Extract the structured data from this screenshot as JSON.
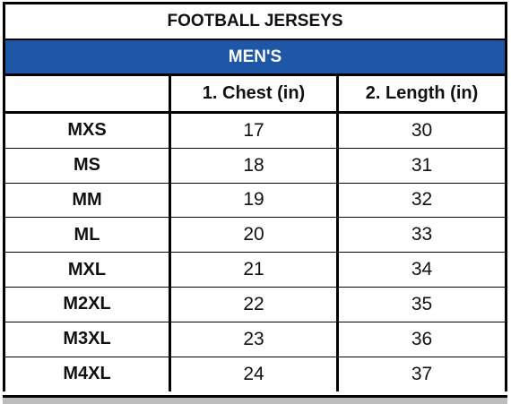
{
  "table": {
    "title": "FOOTBALL JERSEYS",
    "section": "MEN'S",
    "headers": [
      "",
      "1. Chest (in)",
      "2. Length (in)"
    ],
    "rows": [
      {
        "size": "MXS",
        "chest": "17",
        "length": "30"
      },
      {
        "size": "MS",
        "chest": "18",
        "length": "31"
      },
      {
        "size": "MM",
        "chest": "19",
        "length": "32"
      },
      {
        "size": "ML",
        "chest": "20",
        "length": "33"
      },
      {
        "size": "MXL",
        "chest": "21",
        "length": "34"
      },
      {
        "size": "M2XL",
        "chest": "22",
        "length": "35"
      },
      {
        "size": "M3XL",
        "chest": "23",
        "length": "36"
      },
      {
        "size": "M4XL",
        "chest": "24",
        "length": "37"
      }
    ]
  },
  "colors": {
    "section_background": "#1d57a5",
    "section_text": "#ffffff",
    "border": "#000000",
    "footer_band": "#bdbdbd"
  }
}
